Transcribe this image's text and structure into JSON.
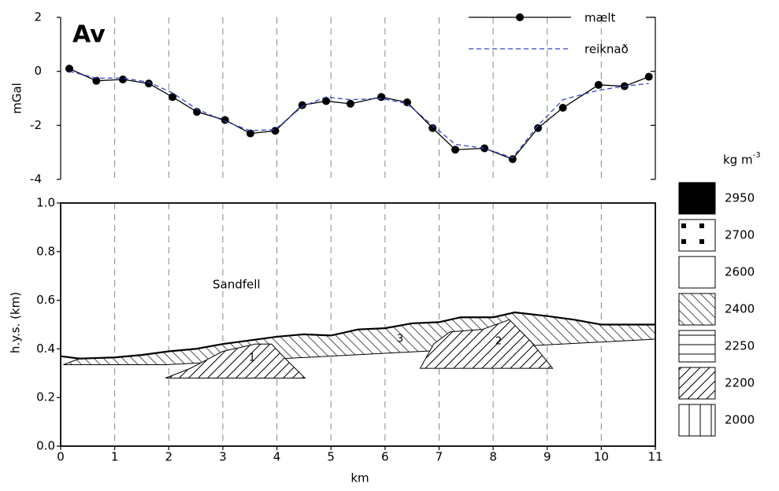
{
  "chart_data": [
    {
      "type": "line",
      "title": "Av",
      "ylabel": "mGal",
      "xlim": [
        0,
        11
      ],
      "ylim": [
        -4,
        2
      ],
      "yticks": [
        -4,
        -2,
        0,
        2
      ],
      "x": [
        0.16,
        0.66,
        1.15,
        1.63,
        2.07,
        2.52,
        3.04,
        3.51,
        3.97,
        4.47,
        4.91,
        5.36,
        5.93,
        6.41,
        6.88,
        7.3,
        7.84,
        8.36,
        8.83,
        9.29,
        9.95,
        10.43,
        10.88
      ],
      "series": [
        {
          "name": "mælt",
          "color": "#000000",
          "marker": "circle",
          "dashed": false,
          "values": [
            0.1,
            -0.35,
            -0.3,
            -0.45,
            -0.95,
            -1.5,
            -1.8,
            -2.3,
            -2.2,
            -1.25,
            -1.1,
            -1.2,
            -0.95,
            -1.15,
            -2.1,
            -2.9,
            -2.85,
            -3.25,
            -2.1,
            -1.35,
            -0.5,
            -0.55,
            -0.2
          ]
        },
        {
          "name": "reiknað",
          "color": "#3344cc",
          "marker": "none",
          "dashed": true,
          "values": [
            0.0,
            -0.25,
            -0.25,
            -0.4,
            -0.8,
            -1.4,
            -1.85,
            -2.2,
            -2.15,
            -1.3,
            -0.95,
            -1.05,
            -1.0,
            -1.2,
            -2.0,
            -2.7,
            -2.85,
            -3.2,
            -2.0,
            -1.05,
            -0.7,
            -0.55,
            -0.45
          ]
        }
      ]
    },
    {
      "type": "section",
      "xlabel": "km",
      "ylabel": "h.y.s. (km)",
      "annotation": "Sandfell",
      "xlim": [
        0,
        11
      ],
      "xticks": [
        0,
        1,
        2,
        3,
        4,
        5,
        6,
        7,
        8,
        9,
        10,
        11
      ],
      "ylim": [
        0,
        1
      ],
      "yticks": [
        {
          "value": 0,
          "label": "0.0"
        },
        0.2,
        0.4,
        0.6,
        0.8,
        {
          "value": 1,
          "label": "1.0"
        }
      ],
      "surface": {
        "x": [
          0,
          0.35,
          1,
          1.5,
          2,
          2.5,
          3,
          3.5,
          4,
          4.5,
          5,
          5.5,
          6,
          6.5,
          7,
          7.4,
          8,
          8.4,
          9,
          9.5,
          10,
          11
        ],
        "y": [
          0.37,
          0.36,
          0.365,
          0.375,
          0.39,
          0.4,
          0.42,
          0.435,
          0.45,
          0.46,
          0.455,
          0.48,
          0.485,
          0.505,
          0.51,
          0.53,
          0.53,
          0.55,
          0.535,
          0.52,
          0.5,
          0.5
        ]
      },
      "bodies": [
        {
          "label": "3",
          "pattern": "back-diagonal",
          "x": [
            0.05,
            0.35,
            1,
            1.5,
            2,
            2.5,
            3,
            3.5,
            4,
            4.5,
            5,
            5.5,
            6,
            6.5,
            7,
            7.4,
            8,
            8.4,
            9,
            9.5,
            10,
            11,
            11,
            1.95
          ],
          "y": [
            0.335,
            0.36,
            0.365,
            0.375,
            0.39,
            0.4,
            0.42,
            0.435,
            0.45,
            0.46,
            0.455,
            0.48,
            0.485,
            0.505,
            0.51,
            0.53,
            0.53,
            0.55,
            0.535,
            0.52,
            0.5,
            0.5,
            0.44,
            0.335
          ]
        },
        {
          "label": "1",
          "pattern": "forward-diagonal",
          "x": [
            1.94,
            2.4,
            3.0,
            3.6,
            3.9,
            4.2,
            4.52
          ],
          "y": [
            0.28,
            0.32,
            0.39,
            0.42,
            0.42,
            0.35,
            0.28
          ]
        },
        {
          "label": "2",
          "pattern": "forward-diagonal",
          "x": [
            6.65,
            6.9,
            7.2,
            7.8,
            8.3,
            8.7,
            9.1
          ],
          "y": [
            0.32,
            0.42,
            0.47,
            0.48,
            0.52,
            0.43,
            0.32
          ]
        }
      ],
      "density_legend": {
        "title": "kg m",
        "title_sup": "-3",
        "items": [
          {
            "value": 2950,
            "pattern": "solid"
          },
          {
            "value": 2700,
            "pattern": "dots"
          },
          {
            "value": 2600,
            "pattern": "blank"
          },
          {
            "value": 2400,
            "pattern": "back-diagonal"
          },
          {
            "value": 2250,
            "pattern": "horizontal"
          },
          {
            "value": 2200,
            "pattern": "forward-diagonal"
          },
          {
            "value": 2000,
            "pattern": "vertical"
          }
        ]
      }
    }
  ]
}
